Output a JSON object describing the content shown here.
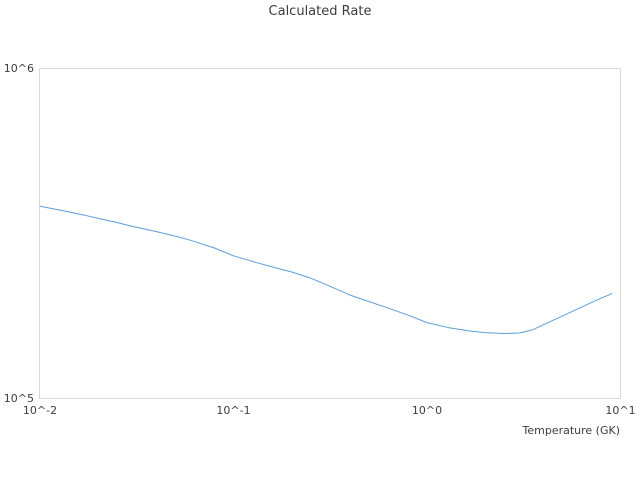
{
  "chart_data": {
    "type": "line",
    "title": "Calculated Rate",
    "xlabel": "Temperature (GK)",
    "ylabel": "",
    "xscale": "log",
    "yscale": "log",
    "xlim": [
      0.01,
      10
    ],
    "ylim": [
      100000,
      1000000
    ],
    "grid": false,
    "legend_position": "none",
    "line_color": "#5e9ed9",
    "border_color": "#d9d9d9",
    "xticks": [
      {
        "label": "10^-2",
        "value": 0.01
      },
      {
        "label": "10^-1",
        "value": 0.1
      },
      {
        "label": "10^0",
        "value": 1
      },
      {
        "label": "10^1",
        "value": 10
      }
    ],
    "yticks": [
      {
        "label": "10^6",
        "value": 1000000
      },
      {
        "label": "10^5",
        "value": 100000
      }
    ],
    "x": [
      0.01,
      0.013,
      0.017,
      0.02,
      0.025,
      0.03,
      0.04,
      0.05,
      0.06,
      0.08,
      0.1,
      0.13,
      0.17,
      0.2,
      0.25,
      0.3,
      0.4,
      0.5,
      0.6,
      0.8,
      1.0,
      1.3,
      1.7,
      2.0,
      2.5,
      3.0,
      3.5,
      4.0,
      5.0,
      6.0,
      7.0,
      8.0,
      9.0
    ],
    "y": [
      383000,
      372000,
      360000,
      352000,
      342000,
      333000,
      321000,
      311000,
      302000,
      286000,
      271000,
      259000,
      248000,
      242000,
      232000,
      222000,
      206000,
      197000,
      190000,
      179000,
      170000,
      164000,
      160000,
      158500,
      157500,
      158000,
      161500,
      167500,
      177800,
      187000,
      195000,
      202000,
      208000
    ]
  }
}
